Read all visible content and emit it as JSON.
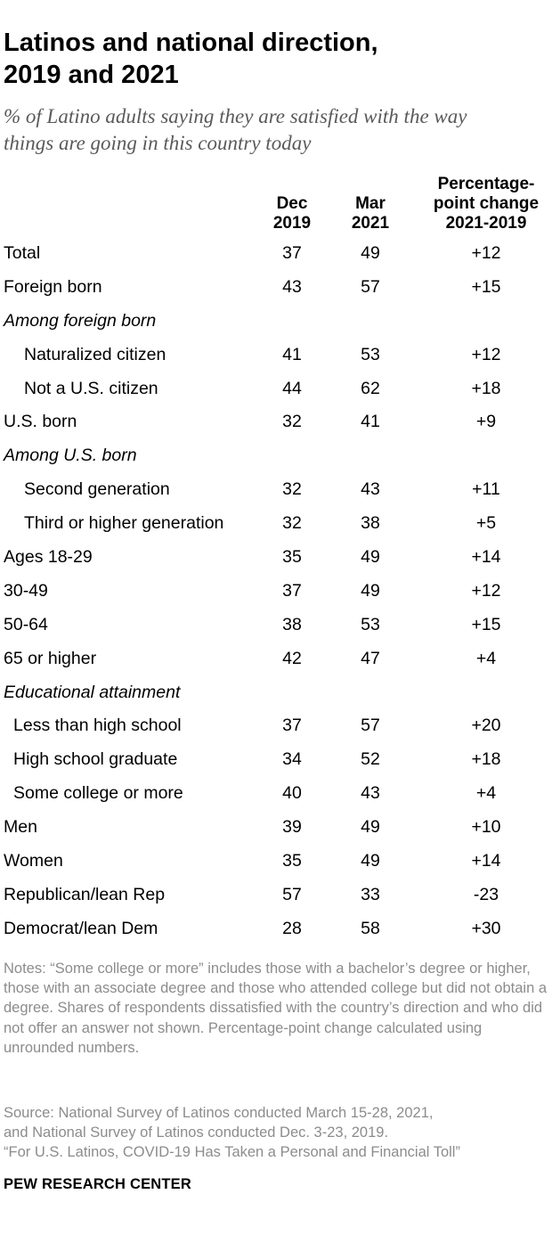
{
  "title_line1": "Latinos and national direction,",
  "title_line2": "2019 and 2021",
  "subtitle_line1": "% of Latino adults saying they are satisfied with the way",
  "subtitle_line2": "things are going in this country today",
  "chart_data": {
    "type": "table",
    "columns": [
      {
        "line1": "Dec",
        "line2": "2019"
      },
      {
        "line1": "Mar",
        "line2": "2021"
      },
      {
        "line1": "Percentage-",
        "line2": "point change",
        "line3": "2021-2019"
      }
    ],
    "rows": [
      {
        "label": "Total",
        "style": "normal",
        "dec2019": "37",
        "mar2021": "49",
        "change": "+12"
      },
      {
        "label": "Foreign born",
        "style": "normal",
        "dec2019": "43",
        "mar2021": "57",
        "change": "+15"
      },
      {
        "label": "Among foreign born",
        "style": "header",
        "dec2019": "",
        "mar2021": "",
        "change": ""
      },
      {
        "label": "Naturalized citizen",
        "style": "indent",
        "dec2019": "41",
        "mar2021": "53",
        "change": "+12"
      },
      {
        "label": "Not a U.S. citizen",
        "style": "indent",
        "dec2019": "44",
        "mar2021": "62",
        "change": "+18"
      },
      {
        "label": "U.S. born",
        "style": "normal",
        "dec2019": "32",
        "mar2021": "41",
        "change": "+9"
      },
      {
        "label": "Among U.S. born",
        "style": "header",
        "dec2019": "",
        "mar2021": "",
        "change": ""
      },
      {
        "label": "Second generation",
        "style": "indent",
        "dec2019": "32",
        "mar2021": "43",
        "change": "+11"
      },
      {
        "label": "Third or higher generation",
        "style": "indent",
        "dec2019": "32",
        "mar2021": "38",
        "change": "+5"
      },
      {
        "label": "Ages 18-29",
        "style": "normal",
        "dec2019": "35",
        "mar2021": "49",
        "change": "+14"
      },
      {
        "label": "30-49",
        "style": "normal",
        "dec2019": "37",
        "mar2021": "49",
        "change": "+12"
      },
      {
        "label": "50-64",
        "style": "normal",
        "dec2019": "38",
        "mar2021": "53",
        "change": "+15"
      },
      {
        "label": "65 or higher",
        "style": "normal",
        "dec2019": "42",
        "mar2021": "47",
        "change": "+4"
      },
      {
        "label": "Educational attainment",
        "style": "header",
        "dec2019": "",
        "mar2021": "",
        "change": ""
      },
      {
        "label": "Less than high school",
        "style": "indent-small",
        "dec2019": "37",
        "mar2021": "57",
        "change": "+20"
      },
      {
        "label": "High school graduate",
        "style": "indent-small",
        "dec2019": "34",
        "mar2021": "52",
        "change": "+18"
      },
      {
        "label": "Some college or more",
        "style": "indent-small",
        "dec2019": "40",
        "mar2021": "43",
        "change": "+4"
      },
      {
        "label": "Men",
        "style": "normal",
        "dec2019": "39",
        "mar2021": "49",
        "change": "+10"
      },
      {
        "label": "Women",
        "style": "normal",
        "dec2019": "35",
        "mar2021": "49",
        "change": "+14"
      },
      {
        "label": "Republican/lean Rep",
        "style": "normal",
        "dec2019": "57",
        "mar2021": "33",
        "change": "-23"
      },
      {
        "label": "Democrat/lean Dem",
        "style": "normal",
        "dec2019": "28",
        "mar2021": "58",
        "change": "+30"
      }
    ]
  },
  "notes": "Notes: “Some college or more” includes those with a bachelor’s degree or higher, those with an associate degree and those who attended college but did not obtain a degree. Shares of respondents dissatisfied with the country’s direction and who did not offer an answer not shown. Percentage-point change calculated using unrounded numbers.",
  "source_line1": "Source: National Survey of Latinos conducted March 15-28, 2021,",
  "source_line2": "and National Survey of Latinos conducted Dec. 3-23, 2019.",
  "source_line3": "“For U.S. Latinos, COVID-19 Has Taken a Personal and Financial Toll”",
  "brand": "PEW RESEARCH CENTER"
}
